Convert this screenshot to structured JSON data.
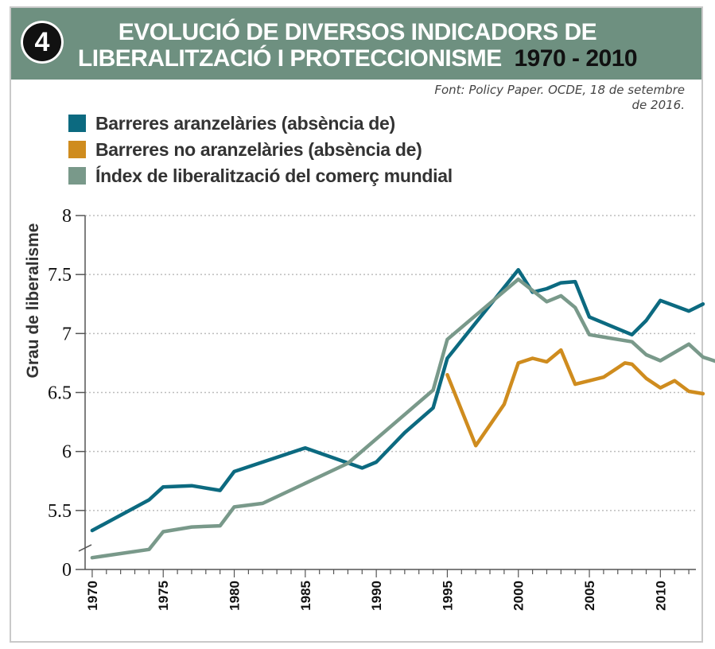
{
  "header": {
    "badge": "4",
    "title_line1": "EVOLUCIÓ DE DIVERSOS INDICADORS DE",
    "title_line2": "LIBERALITZACIÓ I PROTECCIONISME",
    "title_years": "1970 - 2010",
    "bg_color": "#6e9080"
  },
  "source": {
    "line1": "Font: Policy Paper. OCDE, 18 de setembre",
    "line2": "de 2016."
  },
  "chart_data": {
    "type": "line",
    "ylabel": "Grau de liberalisme",
    "xlabel": "",
    "y_ticks": [
      "8",
      "7.5",
      "7",
      "6.5",
      "6",
      "5.5",
      "0"
    ],
    "y_tick_values": [
      8,
      7.5,
      7,
      6.5,
      6,
      5.5,
      5
    ],
    "x_ticks": [
      "1970",
      "1975",
      "1980",
      "1985",
      "1990",
      "1995",
      "2000",
      "2005",
      "2010"
    ],
    "xlim": [
      1969.5,
      2012.5
    ],
    "ylim": [
      5,
      8
    ],
    "y_axis_break": true,
    "grid": "horizontal dotted",
    "legend_position": "top-left",
    "series": [
      {
        "name": "Barreres aranzelàries (absència de)",
        "color": "#0c6a80",
        "x": [
          1970,
          1974,
          1975,
          1977,
          1979,
          1980,
          1985,
          1989,
          1990,
          1992,
          1994,
          1995,
          2000,
          2001,
          2002,
          2003,
          2004,
          2005,
          2008,
          2009,
          2010,
          2012,
          2013
        ],
        "y": [
          5.33,
          5.59,
          5.7,
          5.71,
          5.67,
          5.83,
          6.03,
          5.86,
          5.91,
          6.16,
          6.37,
          6.79,
          7.54,
          7.35,
          7.38,
          7.43,
          7.44,
          7.14,
          6.99,
          7.11,
          7.28,
          7.19,
          7.25
        ]
      },
      {
        "name": "Barreres no aranzelàries (absència de)",
        "color": "#cf8c1e",
        "x": [
          1995,
          1997,
          1999,
          2000,
          2001,
          2002,
          2003,
          2004,
          2005,
          2006,
          2007,
          2007.5,
          2008,
          2009,
          2010,
          2011,
          2012,
          2013
        ],
        "y": [
          6.65,
          6.05,
          6.4,
          6.75,
          6.79,
          6.76,
          6.86,
          6.57,
          6.6,
          6.63,
          6.71,
          6.75,
          6.74,
          6.62,
          6.54,
          6.6,
          6.51,
          6.49
        ]
      },
      {
        "name": "Índex de liberalització del comerç mundial",
        "color": "#79998a",
        "x": [
          1970,
          1974,
          1975,
          1977,
          1979,
          1980,
          1982,
          1988,
          1994,
          1995,
          2000,
          2002,
          2003,
          2004,
          2005,
          2008,
          2009,
          2010,
          2012,
          2013,
          2014
        ],
        "y": [
          5.1,
          5.17,
          5.32,
          5.36,
          5.37,
          5.53,
          5.56,
          5.9,
          6.52,
          6.95,
          7.46,
          7.27,
          7.32,
          7.22,
          6.99,
          6.93,
          6.82,
          6.77,
          6.91,
          6.8,
          6.76
        ]
      }
    ]
  }
}
